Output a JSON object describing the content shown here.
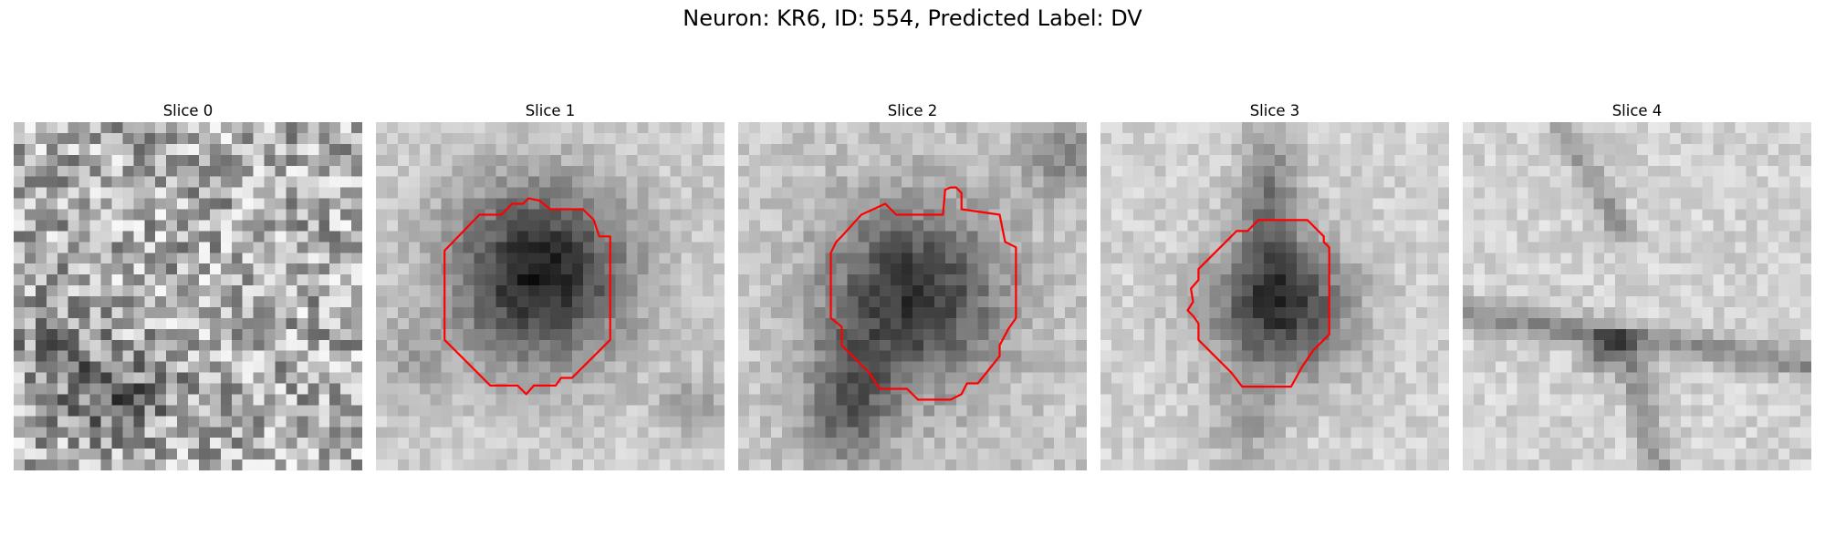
{
  "figure": {
    "title": "Neuron: KR6, ID: 554, Predicted Label: DV"
  },
  "panels": [
    {
      "title": "Slice 0",
      "has_contour": false
    },
    {
      "title": "Slice 1",
      "has_contour": true
    },
    {
      "title": "Slice 2",
      "has_contour": true
    },
    {
      "title": "Slice 3",
      "has_contour": true
    },
    {
      "title": "Slice 4",
      "has_contour": false
    }
  ],
  "colors": {
    "contour": "#ff0000",
    "background": "#ffffff"
  }
}
